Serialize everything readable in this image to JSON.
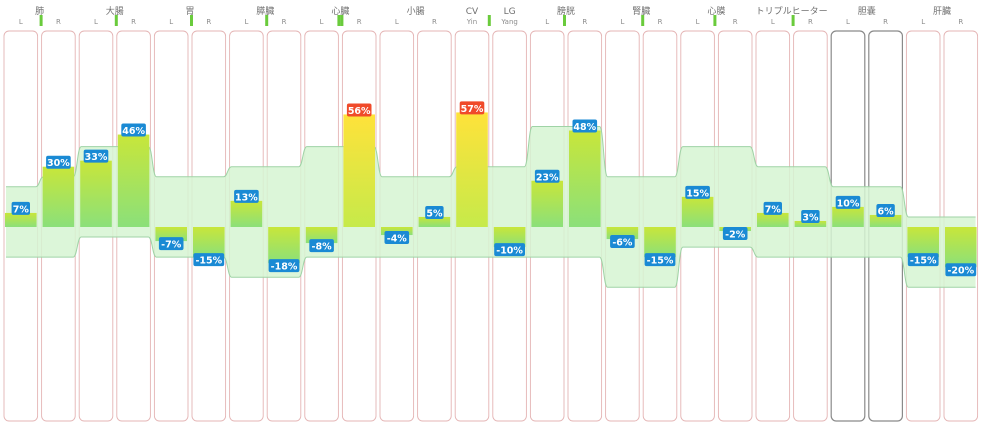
{
  "colors": {
    "column_border": "#e4b4b4",
    "column_border_selected": "#8a8a8a",
    "band_fill": "#d6f5d2",
    "band_stroke": "#9fd3a6",
    "bar_top": "#c8e63a",
    "bar_bottom": "#8be07a",
    "bar_alert_top": "#ffe23a",
    "bar_alert_bottom": "#c6ea4a",
    "label_normal": "#1a8ad4",
    "label_alert": "#f04a2a",
    "header_text": "#6f6f6f",
    "side_text": "#8c8c8c",
    "indicator": "#6acb3c"
  },
  "chart_data": {
    "type": "bar",
    "title": "",
    "ylim": [
      -45,
      100
    ],
    "groups": [
      {
        "name": "肺",
        "sides": [
          "L",
          "R"
        ],
        "indicator": [
          1
        ]
      },
      {
        "name": "大腸",
        "sides": [
          "L",
          "R"
        ],
        "indicator": [
          1
        ]
      },
      {
        "name": "胃",
        "sides": [
          "L",
          "R"
        ],
        "indicator": [
          1
        ]
      },
      {
        "name": "膵臓",
        "sides": [
          "L",
          "R"
        ],
        "indicator": [
          1
        ]
      },
      {
        "name": "心臓",
        "sides": [
          "L",
          "R"
        ],
        "indicator": [
          0,
          1
        ]
      },
      {
        "name": "小腸",
        "sides": [
          "L",
          "R"
        ],
        "indicator": []
      },
      {
        "name": "CV",
        "sides": [
          "Yin"
        ],
        "indicator": [
          0
        ]
      },
      {
        "name": "LG",
        "sides": [
          "Yang"
        ],
        "indicator": []
      },
      {
        "name": "膀胱",
        "sides": [
          "L",
          "R"
        ],
        "indicator": [
          0
        ]
      },
      {
        "name": "腎臓",
        "sides": [
          "L",
          "R"
        ],
        "indicator": [
          1
        ]
      },
      {
        "name": "心膜",
        "sides": [
          "L",
          "R"
        ],
        "indicator": [
          0
        ]
      },
      {
        "name": "トリプルヒーター",
        "sides": [
          "L",
          "R"
        ],
        "indicator": [
          1
        ]
      },
      {
        "name": "胆嚢",
        "sides": [
          "L",
          "R"
        ],
        "indicator": [],
        "selected": true
      },
      {
        "name": "肝臓",
        "sides": [
          "L",
          "R"
        ],
        "indicator": []
      }
    ],
    "values": [
      7,
      30,
      33,
      46,
      -7,
      -15,
      13,
      -18,
      -8,
      56,
      -4,
      5,
      57,
      -10,
      23,
      48,
      -6,
      -15,
      15,
      -2,
      7,
      3,
      10,
      6,
      -15,
      -20
    ],
    "labels": [
      "7%",
      "30%",
      "33%",
      "46%",
      "-7%",
      "-15%",
      "13%",
      "-18%",
      "-8%",
      "56%",
      "-4%",
      "5%",
      "57%",
      "-10%",
      "23%",
      "48%",
      "-6%",
      "-15%",
      "15%",
      "-2%",
      "7%",
      "3%",
      "10%",
      "6%",
      "-15%",
      "-20%"
    ],
    "alert": [
      9,
      12
    ],
    "band_upper": [
      20,
      25,
      40,
      40,
      25,
      25,
      30,
      30,
      40,
      40,
      25,
      25,
      30,
      30,
      50,
      50,
      25,
      25,
      40,
      40,
      30,
      30,
      20,
      20,
      5,
      5
    ],
    "band_lower": [
      -15,
      -15,
      -5,
      -5,
      -15,
      -15,
      -25,
      -25,
      -15,
      -15,
      -15,
      -15,
      -15,
      -15,
      -15,
      -15,
      -30,
      -30,
      -10,
      -10,
      -15,
      -15,
      -15,
      -15,
      -30,
      -30
    ]
  }
}
